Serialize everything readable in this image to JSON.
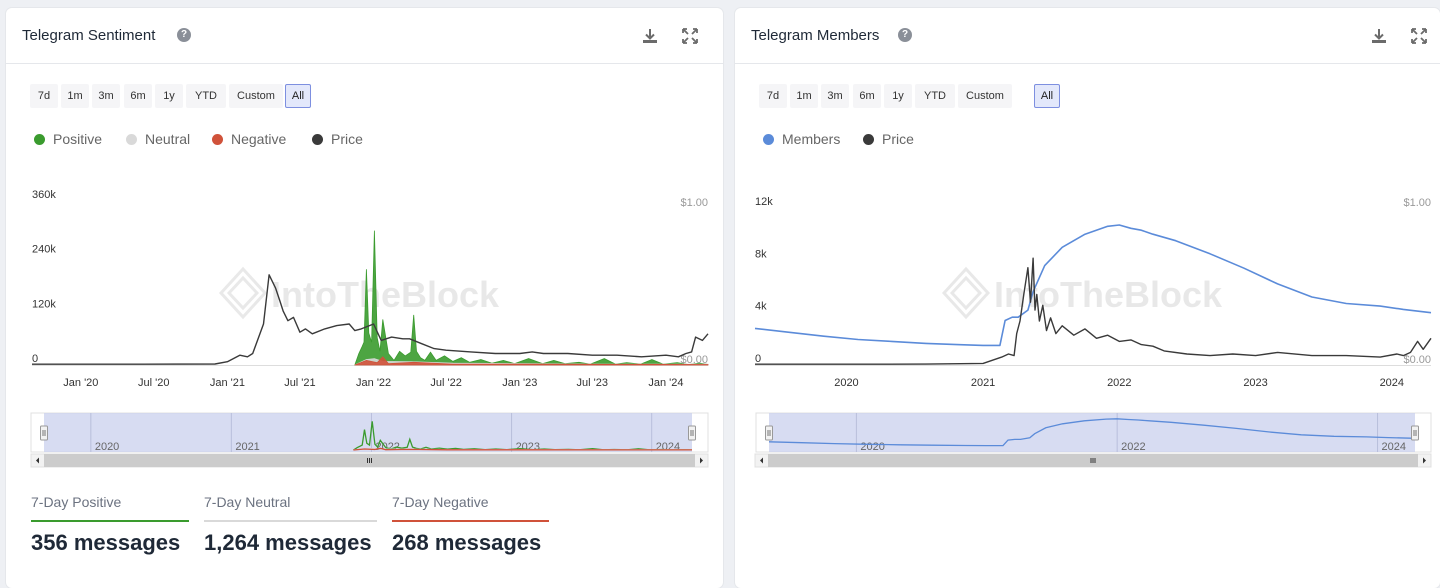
{
  "ranges": [
    "7d",
    "1m",
    "3m",
    "6m",
    "1y",
    "YTD",
    "Custom",
    "All"
  ],
  "active_range": "All",
  "watermark": "IntoTheBlock",
  "icons": {
    "help": "question-circle-icon",
    "download": "download-icon",
    "expand": "expand-icon",
    "handle": "scroll-handle-icon",
    "left": "arrow-left-icon",
    "right": "arrow-right-icon"
  },
  "colors": {
    "positive": "#3a9b2e",
    "neutral": "#d9d9d9",
    "negative": "#d0523a",
    "price": "#3a3a3a",
    "members": "#5b8bd9",
    "active_range": "#7d8fe0"
  },
  "sentiment": {
    "title": "Telegram Sentiment",
    "legend": {
      "positive": "Positive",
      "neutral": "Neutral",
      "negative": "Negative",
      "price": "Price"
    },
    "stats": [
      {
        "label": "7-Day Positive",
        "value": "356 messages",
        "color": "#3a9b2e"
      },
      {
        "label": "7-Day Neutral",
        "value": "1,264 messages",
        "color": "#d9d9d9"
      },
      {
        "label": "7-Day Negative",
        "value": "268 messages",
        "color": "#d0523a"
      }
    ]
  },
  "members": {
    "title": "Telegram Members",
    "legend": {
      "members": "Members",
      "price": "Price"
    }
  },
  "chart_data": [
    {
      "type": "area",
      "title": "Telegram Sentiment",
      "x_range": [
        "2019-09-01",
        "2024-04-15"
      ],
      "y_left": {
        "ticks": [
          0,
          120000,
          240000,
          360000
        ],
        "tick_labels": [
          "0",
          "120k",
          "240k",
          "360k"
        ],
        "ylim": [
          0,
          360000
        ]
      },
      "y_right": {
        "tick_labels": [
          "$0.00",
          "$1.00"
        ],
        "ylim": [
          0,
          1
        ]
      },
      "x_ticks": [
        "Jan '20",
        "Jul '20",
        "Jan '21",
        "Jul '21",
        "Jan '22",
        "Jul '22",
        "Jan '23",
        "Jul '23",
        "Jan '24"
      ],
      "navigator_labels": [
        "2020",
        "2021",
        "2022",
        "2023",
        "2024"
      ],
      "series": [
        {
          "name": "Positive",
          "axis": "left",
          "x": [
            "2021-11-15",
            "2021-11-25",
            "2021-12-03",
            "2021-12-08",
            "2021-12-14",
            "2021-12-20",
            "2021-12-27",
            "2022-01-03",
            "2022-01-10",
            "2022-01-17",
            "2022-01-24",
            "2022-02-07",
            "2022-02-21",
            "2022-03-07",
            "2022-03-21",
            "2022-04-04",
            "2022-04-11",
            "2022-04-18",
            "2022-04-28",
            "2022-05-09",
            "2022-05-23",
            "2022-06-06",
            "2022-06-27",
            "2022-07-18",
            "2022-08-08",
            "2022-08-29",
            "2022-09-26",
            "2022-10-24",
            "2022-11-21",
            "2022-12-19",
            "2023-01-23",
            "2023-02-27",
            "2023-03-27",
            "2023-04-24",
            "2023-05-29",
            "2023-06-26",
            "2023-07-31",
            "2023-08-28",
            "2023-09-25",
            "2023-10-30",
            "2023-11-27",
            "2023-12-25",
            "2024-01-29",
            "2024-02-26",
            "2024-03-25",
            "2024-04-15"
          ],
          "values": [
            0,
            25000,
            40000,
            50000,
            210000,
            70000,
            50000,
            295000,
            60000,
            30000,
            100000,
            25000,
            10000,
            30000,
            20000,
            28000,
            110000,
            30000,
            16000,
            10000,
            28000,
            10000,
            20000,
            8000,
            16000,
            6000,
            12000,
            4000,
            10000,
            3000,
            14000,
            3000,
            10000,
            3000,
            6000,
            2000,
            14000,
            2000,
            5000,
            2000,
            12000,
            2000,
            5000,
            1000,
            4000,
            1000
          ]
        },
        {
          "name": "Neutral",
          "axis": "left",
          "x": [
            "2021-11-15",
            "2021-12-14",
            "2022-01-03",
            "2022-01-24",
            "2022-04-11",
            "2022-07-18",
            "2023-01-23",
            "2023-07-31",
            "2024-04-15"
          ],
          "values": [
            0,
            12000,
            14000,
            8000,
            7000,
            4000,
            3000,
            2000,
            2000
          ]
        },
        {
          "name": "Negative",
          "axis": "left",
          "x": [
            "2021-11-15",
            "2021-12-14",
            "2022-01-10",
            "2022-01-24",
            "2022-02-07",
            "2022-04-11",
            "2022-07-18",
            "2023-01-23",
            "2024-04-15"
          ],
          "values": [
            0,
            10000,
            5000,
            18000,
            3000,
            6000,
            2000,
            2000,
            1000
          ]
        },
        {
          "name": "Price",
          "axis": "right",
          "x": [
            "2019-09-01",
            "2020-01-01",
            "2020-06-01",
            "2020-12-01",
            "2021-01-01",
            "2021-02-01",
            "2021-02-20",
            "2021-03-05",
            "2021-04-01",
            "2021-04-15",
            "2021-05-01",
            "2021-05-12",
            "2021-05-20",
            "2021-06-01",
            "2021-06-15",
            "2021-07-01",
            "2021-07-15",
            "2021-08-01",
            "2021-09-01",
            "2021-10-01",
            "2021-11-01",
            "2021-11-15",
            "2021-12-01",
            "2022-01-01",
            "2022-01-20",
            "2022-02-15",
            "2022-03-15",
            "2022-04-01",
            "2022-05-01",
            "2022-06-01",
            "2022-07-01",
            "2022-09-01",
            "2022-11-01",
            "2023-01-01",
            "2023-02-01",
            "2023-03-01",
            "2023-05-01",
            "2023-07-01",
            "2023-09-01",
            "2023-11-01",
            "2024-01-01",
            "2024-02-01",
            "2024-02-20",
            "2024-03-05",
            "2024-03-15",
            "2024-04-01",
            "2024-04-15"
          ],
          "values": [
            0.005,
            0.005,
            0.005,
            0.006,
            0.02,
            0.06,
            0.05,
            0.07,
            0.25,
            0.55,
            0.47,
            0.39,
            0.33,
            0.27,
            0.29,
            0.2,
            0.22,
            0.19,
            0.22,
            0.24,
            0.25,
            0.21,
            0.22,
            0.25,
            0.15,
            0.17,
            0.16,
            0.16,
            0.13,
            0.1,
            0.09,
            0.08,
            0.07,
            0.07,
            0.08,
            0.07,
            0.07,
            0.06,
            0.06,
            0.05,
            0.06,
            0.05,
            0.07,
            0.08,
            0.17,
            0.15,
            0.19
          ]
        }
      ]
    },
    {
      "type": "line",
      "title": "Telegram Members",
      "x_range": [
        "2019-05-01",
        "2024-04-15"
      ],
      "y_left": {
        "ticks": [
          0,
          4000,
          8000,
          12000
        ],
        "tick_labels": [
          "0",
          "4k",
          "8k",
          "12k"
        ],
        "ylim": [
          0,
          12000
        ]
      },
      "y_right": {
        "tick_labels": [
          "$0.00",
          "$1.00"
        ],
        "ylim": [
          0,
          1
        ]
      },
      "x_ticks": [
        "2020",
        "2021",
        "2022",
        "2023",
        "2024"
      ],
      "navigator_labels": [
        "2020",
        "2022",
        "2024"
      ],
      "series": [
        {
          "name": "Members",
          "axis": "left",
          "x": [
            "2019-05-01",
            "2019-08-01",
            "2019-11-01",
            "2020-02-01",
            "2020-05-01",
            "2020-08-01",
            "2020-11-01",
            "2021-01-01",
            "2021-02-15",
            "2021-03-01",
            "2021-03-20",
            "2021-04-05",
            "2021-05-01",
            "2021-05-15",
            "2021-06-15",
            "2021-08-01",
            "2021-10-01",
            "2021-12-01",
            "2022-01-01",
            "2022-02-01",
            "2022-03-01",
            "2022-04-01",
            "2022-06-01",
            "2022-09-01",
            "2022-12-01",
            "2023-03-01",
            "2023-06-01",
            "2023-09-01",
            "2023-12-01",
            "2024-02-01",
            "2024-04-15"
          ],
          "values": [
            2800,
            2500,
            2200,
            1950,
            1800,
            1650,
            1550,
            1500,
            1500,
            3400,
            3650,
            3650,
            4200,
            5600,
            7600,
            9000,
            10000,
            10600,
            10700,
            10450,
            10300,
            10000,
            9500,
            8500,
            7400,
            6200,
            5200,
            4700,
            4500,
            4250,
            4000
          ]
        },
        {
          "name": "Price",
          "axis": "right",
          "x": [
            "2019-05-01",
            "2020-01-01",
            "2020-08-01",
            "2021-01-01",
            "2021-02-20",
            "2021-03-10",
            "2021-03-25",
            "2021-04-01",
            "2021-04-10",
            "2021-04-20",
            "2021-05-01",
            "2021-05-08",
            "2021-05-15",
            "2021-05-20",
            "2021-05-25",
            "2021-06-01",
            "2021-06-10",
            "2021-06-20",
            "2021-07-01",
            "2021-07-15",
            "2021-08-01",
            "2021-09-01",
            "2021-10-01",
            "2021-11-01",
            "2021-12-01",
            "2022-01-01",
            "2022-02-01",
            "2022-03-01",
            "2022-04-01",
            "2022-05-01",
            "2022-07-01",
            "2022-09-01",
            "2022-11-01",
            "2023-01-01",
            "2023-03-01",
            "2023-06-01",
            "2023-09-01",
            "2023-12-01",
            "2024-01-15",
            "2024-02-01",
            "2024-02-20",
            "2024-03-10",
            "2024-03-25",
            "2024-04-15"
          ],
          "values": [
            0.005,
            0.005,
            0.006,
            0.01,
            0.05,
            0.07,
            0.06,
            0.2,
            0.28,
            0.45,
            0.62,
            0.4,
            0.68,
            0.35,
            0.45,
            0.28,
            0.38,
            0.22,
            0.3,
            0.2,
            0.25,
            0.19,
            0.23,
            0.17,
            0.19,
            0.15,
            0.16,
            0.13,
            0.12,
            0.09,
            0.07,
            0.06,
            0.07,
            0.06,
            0.08,
            0.06,
            0.06,
            0.05,
            0.07,
            0.06,
            0.08,
            0.15,
            0.1,
            0.17
          ]
        }
      ]
    }
  ]
}
